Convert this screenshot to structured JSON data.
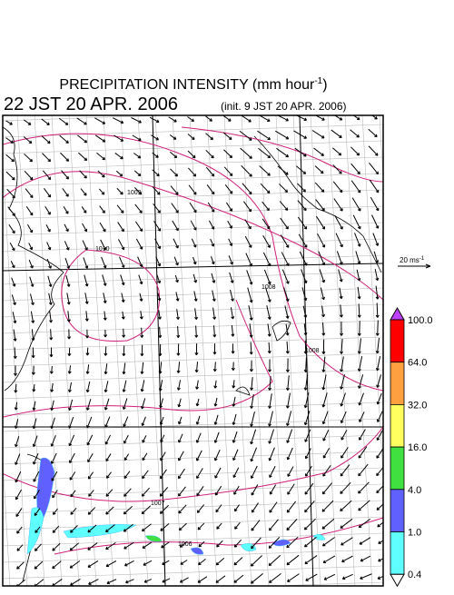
{
  "title": {
    "text": "PRECIPITATION INTENSITY (mm hour",
    "sup": "-1",
    "end": ")"
  },
  "valid_time": "22 JST 20 APR. 2006",
  "init_time": "(init. 9 JST 20 APR. 2006)",
  "vector_scale": {
    "text": "20 ms",
    "sup": "-1"
  },
  "colorbar": {
    "labels": [
      "100.0",
      "64.0",
      "32.0",
      "16.0",
      "4.0",
      "1.0",
      "0.4"
    ],
    "colors": [
      "#ff0000",
      "#ffa040",
      "#ffff60",
      "#40e040",
      "#6060ff",
      "#60ffff"
    ],
    "over_color": "#c040ff",
    "under_color": "#ffffff"
  },
  "isobar_labels": [
    "1010",
    "1009",
    "1008",
    "1008",
    "1007",
    "1006"
  ]
}
